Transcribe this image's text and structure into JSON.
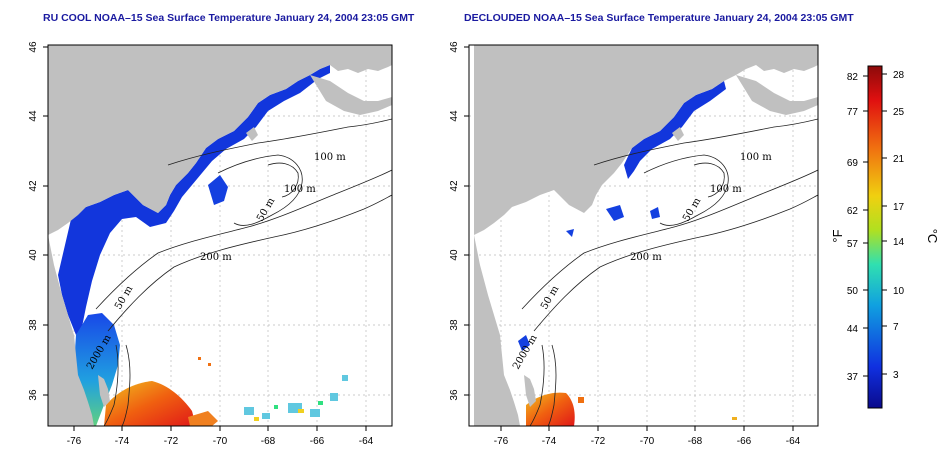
{
  "panels": [
    {
      "title": "RU COOL NOAA–15 Sea Surface Temperature January 24, 2004 23:05 GMT",
      "contour_labels": [
        "100 m",
        "100 m",
        "50 m",
        "200 m",
        "50 m",
        "2000 m"
      ]
    },
    {
      "title": "DECLOUDED NOAA–15 Sea Surface Temperature January 24, 2004 23:05 GMT",
      "contour_labels": [
        "100 m",
        "100 m",
        "50 m",
        "200 m",
        "50 m",
        "2000 m"
      ]
    }
  ],
  "axes": {
    "lon_ticks": [
      "-76",
      "-74",
      "-72",
      "-70",
      "-68",
      "-66",
      "-64"
    ],
    "lat_ticks": [
      "36",
      "38",
      "40",
      "42",
      "44",
      "46"
    ],
    "lon_range": [
      -77,
      -63
    ],
    "lat_range": [
      35,
      46
    ]
  },
  "colorbar": {
    "fahrenheit_ticks": [
      "82",
      "77",
      "69",
      "62",
      "57",
      "50",
      "44",
      "37"
    ],
    "celsius_ticks": [
      "28",
      "25",
      "21",
      "17",
      "14",
      "10",
      "7",
      "3"
    ],
    "fahrenheit_label": "°F",
    "celsius_label": "°C",
    "colors": [
      "#0a0a8c",
      "#1030e0",
      "#10a0e0",
      "#30e0b0",
      "#b0e020",
      "#f0d010",
      "#f07010",
      "#e01010",
      "#8c0a0a"
    ]
  },
  "colors": {
    "land": "#c0c0c0",
    "ocean": "#ffffff",
    "title": "#1a1aa0"
  }
}
